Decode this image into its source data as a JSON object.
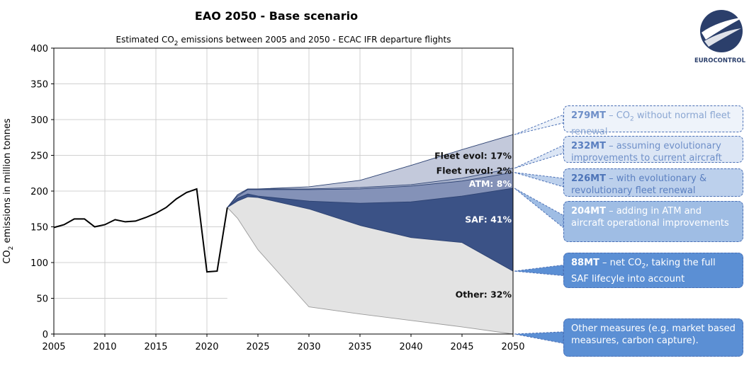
{
  "title": "EAO 2050 - Base scenario",
  "subtitle_pre": "Estimated CO",
  "subtitle_sub": "2",
  "subtitle_post": " emissions between 2005 and 2050 - ECAC IFR departure flights",
  "ylabel_pre": "CO",
  "ylabel_sub": "2",
  "ylabel_post": " emissions in million tonnes",
  "logo_text": "EUROCONTROL",
  "colors": {
    "grey_fill": "#e3e3e3",
    "fleet_evol_fill": "#c3c9db",
    "fleet_revol_fill": "#a8b2cc",
    "atm_fill": "#8492b8",
    "saf_fill": "#3b5286",
    "history_line": "#000000"
  },
  "chart_data": {
    "type": "area",
    "xlim": [
      2005,
      2050
    ],
    "ylim": [
      0,
      400
    ],
    "grid": true,
    "x_ticks": [
      "2005",
      "2010",
      "2015",
      "2020",
      "2025",
      "2030",
      "2035",
      "2040",
      "2045",
      "2050"
    ],
    "y_ticks": [
      "0",
      "50",
      "100",
      "150",
      "200",
      "250",
      "300",
      "350",
      "400"
    ],
    "history": {
      "x": [
        2005,
        2006,
        2007,
        2008,
        2009,
        2010,
        2011,
        2012,
        2013,
        2014,
        2015,
        2016,
        2017,
        2018,
        2019,
        2020,
        2021,
        2022
      ],
      "y": [
        149,
        153,
        161,
        161,
        150,
        153,
        160,
        157,
        158,
        163,
        169,
        177,
        189,
        198,
        203,
        87,
        88,
        177
      ]
    },
    "projection_x": [
      2022,
      2023,
      2024,
      2025,
      2030,
      2035,
      2040,
      2045,
      2050
    ],
    "series": [
      {
        "name": "Fleet evol",
        "y": [
          177,
          195,
          203,
          203,
          206,
          215,
          236,
          258,
          279
        ]
      },
      {
        "name": "Fleet revol",
        "y": [
          177,
          195,
          203,
          203,
          203,
          205,
          209,
          218,
          232
        ]
      },
      {
        "name": "ATM",
        "y": [
          177,
          193,
          202,
          202,
          202,
          203,
          207,
          214,
          226
        ]
      },
      {
        "name": "SAF",
        "y": [
          177,
          190,
          196,
          193,
          186,
          183,
          185,
          193,
          204
        ]
      },
      {
        "name": "Other",
        "y": [
          177,
          186,
          192,
          191,
          175,
          152,
          135,
          128,
          88
        ]
      },
      {
        "name": "Other lower bound",
        "y": [
          177,
          162,
          140,
          118,
          38,
          28,
          19,
          10,
          0
        ]
      }
    ],
    "band_labels": [
      {
        "text": "Fleet evol: 17%",
        "x": 2050,
        "y": 249
      },
      {
        "text": "Fleet revol: 2%",
        "x": 2050,
        "y": 228
      },
      {
        "text": "ATM: 8%",
        "x": 2050,
        "y": 210
      },
      {
        "text": "SAF: 41%",
        "x": 2050,
        "y": 160
      },
      {
        "text": "Other: 32%",
        "x": 2050,
        "y": 55
      }
    ]
  },
  "callouts": [
    {
      "value": "279MT",
      "text_pre": " – CO",
      "text_sub": "2",
      "text_post": " without normal fleet renewal",
      "target_y": 279,
      "bg": "#eef3fa",
      "text_color": "#8aa6d2",
      "value_color": "#6e8fc8"
    },
    {
      "value": "232MT",
      "text_pre": " – assuming evolutionary improvements to current aircraft",
      "text_sub": "",
      "text_post": "",
      "target_y": 232,
      "bg": "#dce6f5",
      "text_color": "#6e8fc8",
      "value_color": "#5a7fc0"
    },
    {
      "value": "226MT",
      "text_pre": " – with evolutionary & revolutionary fleet renewal",
      "text_sub": "",
      "text_post": "",
      "target_y": 226,
      "bg": "#bcd0ec",
      "text_color": "#5a7fc0",
      "value_color": "#4d74b8"
    },
    {
      "value": "204MT",
      "text_pre": " – adding in ATM and aircraft operational improvements",
      "text_sub": "",
      "text_post": "",
      "target_y": 204,
      "bg": "#9fbde4",
      "text_color": "#ffffff",
      "value_color": "#ffffff"
    },
    {
      "value": "88MT",
      "text_pre": " – net CO",
      "text_sub": "2",
      "text_post": ", taking the full SAF lifecyle into account",
      "target_y": 88,
      "bg": "#5b8fd4",
      "text_color": "#ffffff",
      "value_color": "#ffffff"
    },
    {
      "value": "",
      "text_pre": "Other measures (e.g. market based measures, carbon capture).",
      "text_sub": "",
      "text_post": "",
      "target_y": 0,
      "bg": "#5b8fd4",
      "text_color": "#ffffff",
      "value_color": "#ffffff"
    }
  ]
}
